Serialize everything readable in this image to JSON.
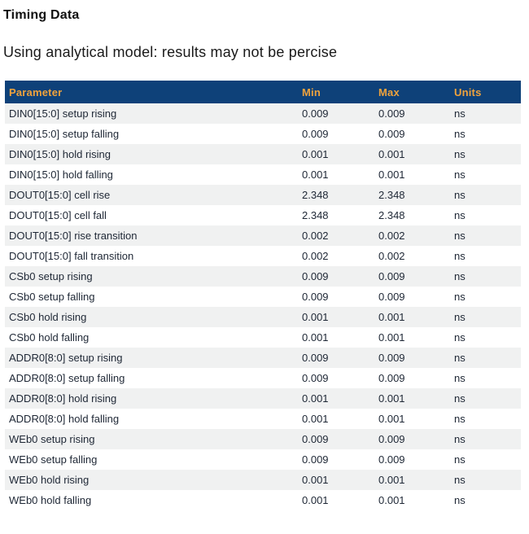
{
  "page": {
    "title": "Timing Data",
    "subtitle": "Using analytical model: results may not be percise"
  },
  "colors": {
    "header_bg": "#0e4179",
    "header_text": "#f0a33c",
    "row_alt_bg": "#f0f1f1",
    "row_text": "#1e2735",
    "title_text": "#111111"
  },
  "table": {
    "columns": [
      "Parameter",
      "Min",
      "Max",
      "Units"
    ],
    "rows": [
      {
        "parameter": "DIN0[15:0] setup rising",
        "min": "0.009",
        "max": "0.009",
        "units": "ns"
      },
      {
        "parameter": "DIN0[15:0] setup falling",
        "min": "0.009",
        "max": "0.009",
        "units": "ns"
      },
      {
        "parameter": "DIN0[15:0] hold rising",
        "min": "0.001",
        "max": "0.001",
        "units": "ns"
      },
      {
        "parameter": "DIN0[15:0] hold falling",
        "min": "0.001",
        "max": "0.001",
        "units": "ns"
      },
      {
        "parameter": "DOUT0[15:0] cell rise",
        "min": "2.348",
        "max": "2.348",
        "units": "ns"
      },
      {
        "parameter": "DOUT0[15:0] cell fall",
        "min": "2.348",
        "max": "2.348",
        "units": "ns"
      },
      {
        "parameter": "DOUT0[15:0] rise transition",
        "min": "0.002",
        "max": "0.002",
        "units": "ns"
      },
      {
        "parameter": "DOUT0[15:0] fall transition",
        "min": "0.002",
        "max": "0.002",
        "units": "ns"
      },
      {
        "parameter": "CSb0 setup rising",
        "min": "0.009",
        "max": "0.009",
        "units": "ns"
      },
      {
        "parameter": "CSb0 setup falling",
        "min": "0.009",
        "max": "0.009",
        "units": "ns"
      },
      {
        "parameter": "CSb0 hold rising",
        "min": "0.001",
        "max": "0.001",
        "units": "ns"
      },
      {
        "parameter": "CSb0 hold falling",
        "min": "0.001",
        "max": "0.001",
        "units": "ns"
      },
      {
        "parameter": "ADDR0[8:0] setup rising",
        "min": "0.009",
        "max": "0.009",
        "units": "ns"
      },
      {
        "parameter": "ADDR0[8:0] setup falling",
        "min": "0.009",
        "max": "0.009",
        "units": "ns"
      },
      {
        "parameter": "ADDR0[8:0] hold rising",
        "min": "0.001",
        "max": "0.001",
        "units": "ns"
      },
      {
        "parameter": "ADDR0[8:0] hold falling",
        "min": "0.001",
        "max": "0.001",
        "units": "ns"
      },
      {
        "parameter": "WEb0 setup rising",
        "min": "0.009",
        "max": "0.009",
        "units": "ns"
      },
      {
        "parameter": "WEb0 setup falling",
        "min": "0.009",
        "max": "0.009",
        "units": "ns"
      },
      {
        "parameter": "WEb0 hold rising",
        "min": "0.001",
        "max": "0.001",
        "units": "ns"
      },
      {
        "parameter": "WEb0 hold falling",
        "min": "0.001",
        "max": "0.001",
        "units": "ns"
      }
    ]
  }
}
